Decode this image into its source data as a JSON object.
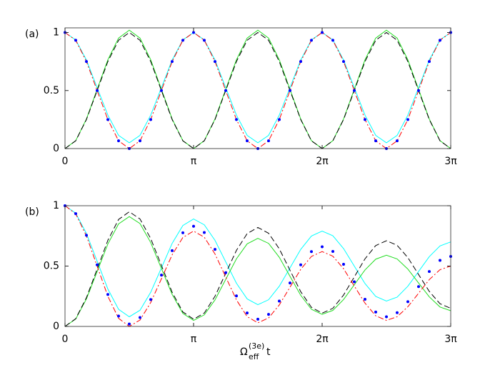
{
  "chart_data": [
    {
      "type": "line",
      "panel_label": "(a)",
      "x": [
        0,
        0.2618,
        0.5236,
        0.7854,
        1.0472,
        1.309,
        1.5708,
        1.8326,
        2.0944,
        2.3562,
        2.618,
        2.8798,
        3.1416,
        3.4034,
        3.6652,
        3.927,
        4.1888,
        4.4506,
        4.7124,
        4.9742,
        5.236,
        5.4978,
        5.7596,
        6.0214,
        6.2832,
        6.545,
        6.8068,
        7.0686,
        7.3304,
        7.5922,
        7.854,
        8.1158,
        8.3776,
        8.6394,
        8.9012,
        9.163,
        9.4248
      ],
      "series": [
        {
          "color": "#00ffff",
          "style": "solid",
          "values": [
            1,
            0.936,
            0.763,
            0.525,
            0.288,
            0.114,
            0.05,
            0.114,
            0.288,
            0.525,
            0.763,
            0.936,
            1,
            0.936,
            0.763,
            0.525,
            0.288,
            0.114,
            0.05,
            0.114,
            0.288,
            0.525,
            0.763,
            0.936,
            1,
            0.936,
            0.763,
            0.525,
            0.288,
            0.114,
            0.05,
            0.114,
            0.288,
            0.525,
            0.763,
            0.936,
            1
          ]
        },
        {
          "color": "#22dd22",
          "style": "solid",
          "values": [
            0,
            0.068,
            0.255,
            0.51,
            0.765,
            0.952,
            1.02,
            0.952,
            0.765,
            0.51,
            0.255,
            0.068,
            0,
            0.068,
            0.255,
            0.51,
            0.765,
            0.952,
            1.02,
            0.952,
            0.765,
            0.51,
            0.255,
            0.068,
            0,
            0.068,
            0.255,
            0.51,
            0.765,
            0.952,
            1.02,
            0.952,
            0.765,
            0.51,
            0.255,
            0.068,
            0
          ]
        },
        {
          "color": "#000000",
          "style": "dashed",
          "values": [
            0,
            0.067,
            0.25,
            0.5,
            0.75,
            0.933,
            1,
            0.933,
            0.75,
            0.5,
            0.25,
            0.067,
            0,
            0.067,
            0.25,
            0.5,
            0.75,
            0.933,
            1,
            0.933,
            0.75,
            0.5,
            0.25,
            0.067,
            0,
            0.067,
            0.25,
            0.5,
            0.75,
            0.933,
            1,
            0.933,
            0.75,
            0.5,
            0.25,
            0.067,
            0
          ]
        },
        {
          "color": "#ff0000",
          "style": "dashdot",
          "values": [
            1,
            0.933,
            0.75,
            0.5,
            0.25,
            0.067,
            0,
            0.067,
            0.25,
            0.5,
            0.75,
            0.933,
            1,
            0.933,
            0.75,
            0.5,
            0.25,
            0.067,
            0,
            0.067,
            0.25,
            0.5,
            0.75,
            0.933,
            1,
            0.933,
            0.75,
            0.5,
            0.25,
            0.067,
            0,
            0.067,
            0.25,
            0.5,
            0.75,
            0.933,
            1
          ]
        },
        {
          "color": "#0000ff",
          "style": "dotted",
          "values": [
            1,
            0.933,
            0.75,
            0.5,
            0.25,
            0.067,
            0,
            0.067,
            0.25,
            0.5,
            0.75,
            0.933,
            1,
            0.933,
            0.75,
            0.5,
            0.25,
            0.067,
            0,
            0.067,
            0.25,
            0.5,
            0.75,
            0.933,
            1,
            0.933,
            0.75,
            0.5,
            0.25,
            0.067,
            0,
            0.067,
            0.25,
            0.5,
            0.75,
            0.933,
            1
          ]
        }
      ],
      "xlim": [
        0,
        9.4248
      ],
      "ylim": [
        0,
        1.04
      ],
      "xticks": [
        0,
        {
          "value": 3.1416,
          "label": "π"
        },
        {
          "value": 6.2832,
          "label": "2π"
        },
        {
          "value": 9.4248,
          "label": "3π"
        }
      ],
      "yticks": [
        0,
        0.5,
        1
      ]
    },
    {
      "type": "line",
      "panel_label": "(b)",
      "x": [
        0,
        0.2618,
        0.5236,
        0.7854,
        1.0472,
        1.309,
        1.5708,
        1.8326,
        2.0944,
        2.3562,
        2.618,
        2.8798,
        3.1416,
        3.4034,
        3.6652,
        3.927,
        4.1888,
        4.4506,
        4.7124,
        4.9742,
        5.236,
        5.4978,
        5.7596,
        6.0214,
        6.2832,
        6.545,
        6.8068,
        7.0686,
        7.3304,
        7.5922,
        7.854,
        8.1158,
        8.3776,
        8.6394,
        8.9012,
        9.163,
        9.4248
      ],
      "series": [
        {
          "color": "#00ffff",
          "style": "solid",
          "values": [
            1,
            0.938,
            0.77,
            0.54,
            0.31,
            0.142,
            0.08,
            0.134,
            0.283,
            0.485,
            0.688,
            0.836,
            0.89,
            0.842,
            0.713,
            0.535,
            0.358,
            0.228,
            0.18,
            0.221,
            0.333,
            0.485,
            0.638,
            0.749,
            0.79,
            0.751,
            0.645,
            0.5,
            0.355,
            0.249,
            0.21,
            0.243,
            0.333,
            0.455,
            0.578,
            0.667,
            0.7
          ]
        },
        {
          "color": "#22dd22",
          "style": "solid",
          "values": [
            0,
            0.061,
            0.228,
            0.455,
            0.683,
            0.849,
            0.91,
            0.852,
            0.695,
            0.48,
            0.265,
            0.108,
            0.05,
            0.096,
            0.22,
            0.39,
            0.56,
            0.684,
            0.73,
            0.688,
            0.573,
            0.415,
            0.258,
            0.142,
            0.1,
            0.133,
            0.223,
            0.345,
            0.468,
            0.557,
            0.59,
            0.559,
            0.475,
            0.36,
            0.245,
            0.161,
            0.13
          ]
        },
        {
          "color": "#000000",
          "style": "dashed",
          "values": [
            0,
            0.064,
            0.238,
            0.475,
            0.713,
            0.886,
            0.95,
            0.89,
            0.728,
            0.505,
            0.283,
            0.12,
            0.06,
            0.111,
            0.25,
            0.44,
            0.63,
            0.769,
            0.82,
            0.772,
            0.643,
            0.465,
            0.288,
            0.158,
            0.11,
            0.15,
            0.26,
            0.41,
            0.56,
            0.67,
            0.71,
            0.672,
            0.57,
            0.43,
            0.29,
            0.188,
            0.15
          ]
        },
        {
          "color": "#ff0000",
          "style": "dashdot",
          "values": [
            1,
            0.933,
            0.75,
            0.5,
            0.25,
            0.067,
            0,
            0.053,
            0.198,
            0.395,
            0.593,
            0.737,
            0.79,
            0.739,
            0.6,
            0.41,
            0.22,
            0.081,
            0.03,
            0.07,
            0.178,
            0.325,
            0.473,
            0.58,
            0.62,
            0.582,
            0.478,
            0.335,
            0.193,
            0.088,
            0.05,
            0.08,
            0.163,
            0.275,
            0.388,
            0.47,
            0.5
          ]
        },
        {
          "color": "#0000ff",
          "style": "dotted",
          "values": [
            1,
            0.934,
            0.755,
            0.51,
            0.265,
            0.086,
            0.02,
            0.074,
            0.223,
            0.425,
            0.628,
            0.776,
            0.83,
            0.778,
            0.638,
            0.445,
            0.253,
            0.112,
            0.06,
            0.1,
            0.21,
            0.36,
            0.51,
            0.62,
            0.66,
            0.621,
            0.515,
            0.37,
            0.225,
            0.119,
            0.08,
            0.114,
            0.205,
            0.33,
            0.455,
            0.547,
            0.58
          ]
        }
      ],
      "xlim": [
        0,
        9.4248
      ],
      "ylim": [
        0,
        1
      ],
      "xticks": [
        0,
        {
          "value": 3.1416,
          "label": "π"
        },
        {
          "value": 6.2832,
          "label": "2π"
        },
        {
          "value": 9.4248,
          "label": "3π"
        }
      ],
      "yticks": [
        0,
        0.5,
        1
      ],
      "xlabel": {
        "base": "Ω",
        "sup": "(3e)",
        "sub": "eff",
        "tail": "t"
      }
    }
  ]
}
